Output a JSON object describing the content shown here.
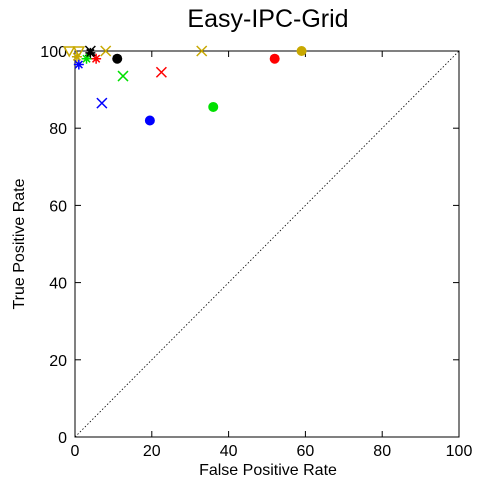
{
  "chart_data": {
    "type": "scatter",
    "title": "Easy-IPC-Grid",
    "xlabel": "False Positive Rate",
    "ylabel": "True Positive Rate",
    "xlim": [
      0,
      100
    ],
    "ylim": [
      0,
      100
    ],
    "xticks": [
      "0",
      "20",
      "40",
      "60",
      "80",
      "100"
    ],
    "yticks": [
      "0",
      "20",
      "40",
      "60",
      "80",
      "100"
    ],
    "grid": false,
    "diagonal_reference": true,
    "series": [
      {
        "marker": "circle",
        "color": "#ff0000",
        "points": [
          [
            52,
            98
          ]
        ]
      },
      {
        "marker": "circle",
        "color": "#00e000",
        "points": [
          [
            36,
            85.5
          ]
        ]
      },
      {
        "marker": "circle",
        "color": "#0000ff",
        "points": [
          [
            19.5,
            82
          ]
        ]
      },
      {
        "marker": "circle",
        "color": "#c8a800",
        "points": [
          [
            59,
            100
          ]
        ]
      },
      {
        "marker": "circle",
        "color": "#000000",
        "points": [
          [
            11,
            98
          ]
        ]
      },
      {
        "marker": "x",
        "color": "#ff0000",
        "points": [
          [
            22.5,
            94.5
          ]
        ]
      },
      {
        "marker": "x",
        "color": "#00e000",
        "points": [
          [
            12.5,
            93.5
          ]
        ]
      },
      {
        "marker": "x",
        "color": "#0000ff",
        "points": [
          [
            7,
            86.5
          ]
        ]
      },
      {
        "marker": "x",
        "color": "#c8a800",
        "points": [
          [
            33,
            100
          ],
          [
            8,
            100
          ]
        ]
      },
      {
        "marker": "x",
        "color": "#000000",
        "points": [
          [
            4,
            100
          ]
        ]
      },
      {
        "marker": "star",
        "color": "#ff0000",
        "points": [
          [
            5.5,
            98
          ]
        ]
      },
      {
        "marker": "star",
        "color": "#00e000",
        "points": [
          [
            3,
            98
          ]
        ]
      },
      {
        "marker": "star",
        "color": "#0000ff",
        "points": [
          [
            1,
            96.5
          ]
        ]
      },
      {
        "marker": "star",
        "color": "#c8a800",
        "points": [
          [
            0.5,
            98.5
          ]
        ]
      },
      {
        "marker": "star",
        "color": "#000000",
        "points": [
          [
            4,
            99.5
          ]
        ]
      },
      {
        "marker": "triangle-down",
        "color": "#c8a800",
        "points": [
          [
            -1.5,
            100
          ],
          [
            1,
            100
          ]
        ]
      }
    ]
  }
}
